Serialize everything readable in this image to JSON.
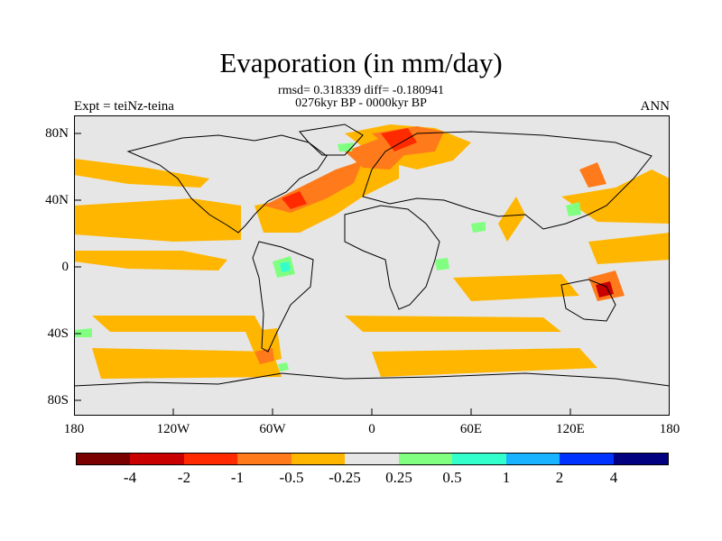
{
  "title": "Evaporation (in mm/day)",
  "stats_line1": "rmsd= 0.318339 diff= -0.180941",
  "stats_line2": "0276kyr BP - 0000kyr BP",
  "left_label": "Expt = teiNz-teina",
  "right_label": "ANN",
  "lat_labels": [
    "80N",
    "40N",
    "0",
    "40S",
    "80S"
  ],
  "lon_labels": [
    "180",
    "120W",
    "60W",
    "0",
    "60E",
    "120E",
    "180"
  ],
  "colorbar": {
    "colors": [
      "#7a0000",
      "#c80000",
      "#ff2a00",
      "#ff7a1a",
      "#ffb600",
      "#e6e6e6",
      "#80ff80",
      "#33ffcc",
      "#19b3ff",
      "#0033ff",
      "#000080"
    ],
    "labels": [
      "-4",
      "-2",
      "-1",
      "-0.5",
      "-0.25",
      "0.25",
      "0.5",
      "1",
      "2",
      "4"
    ]
  }
}
